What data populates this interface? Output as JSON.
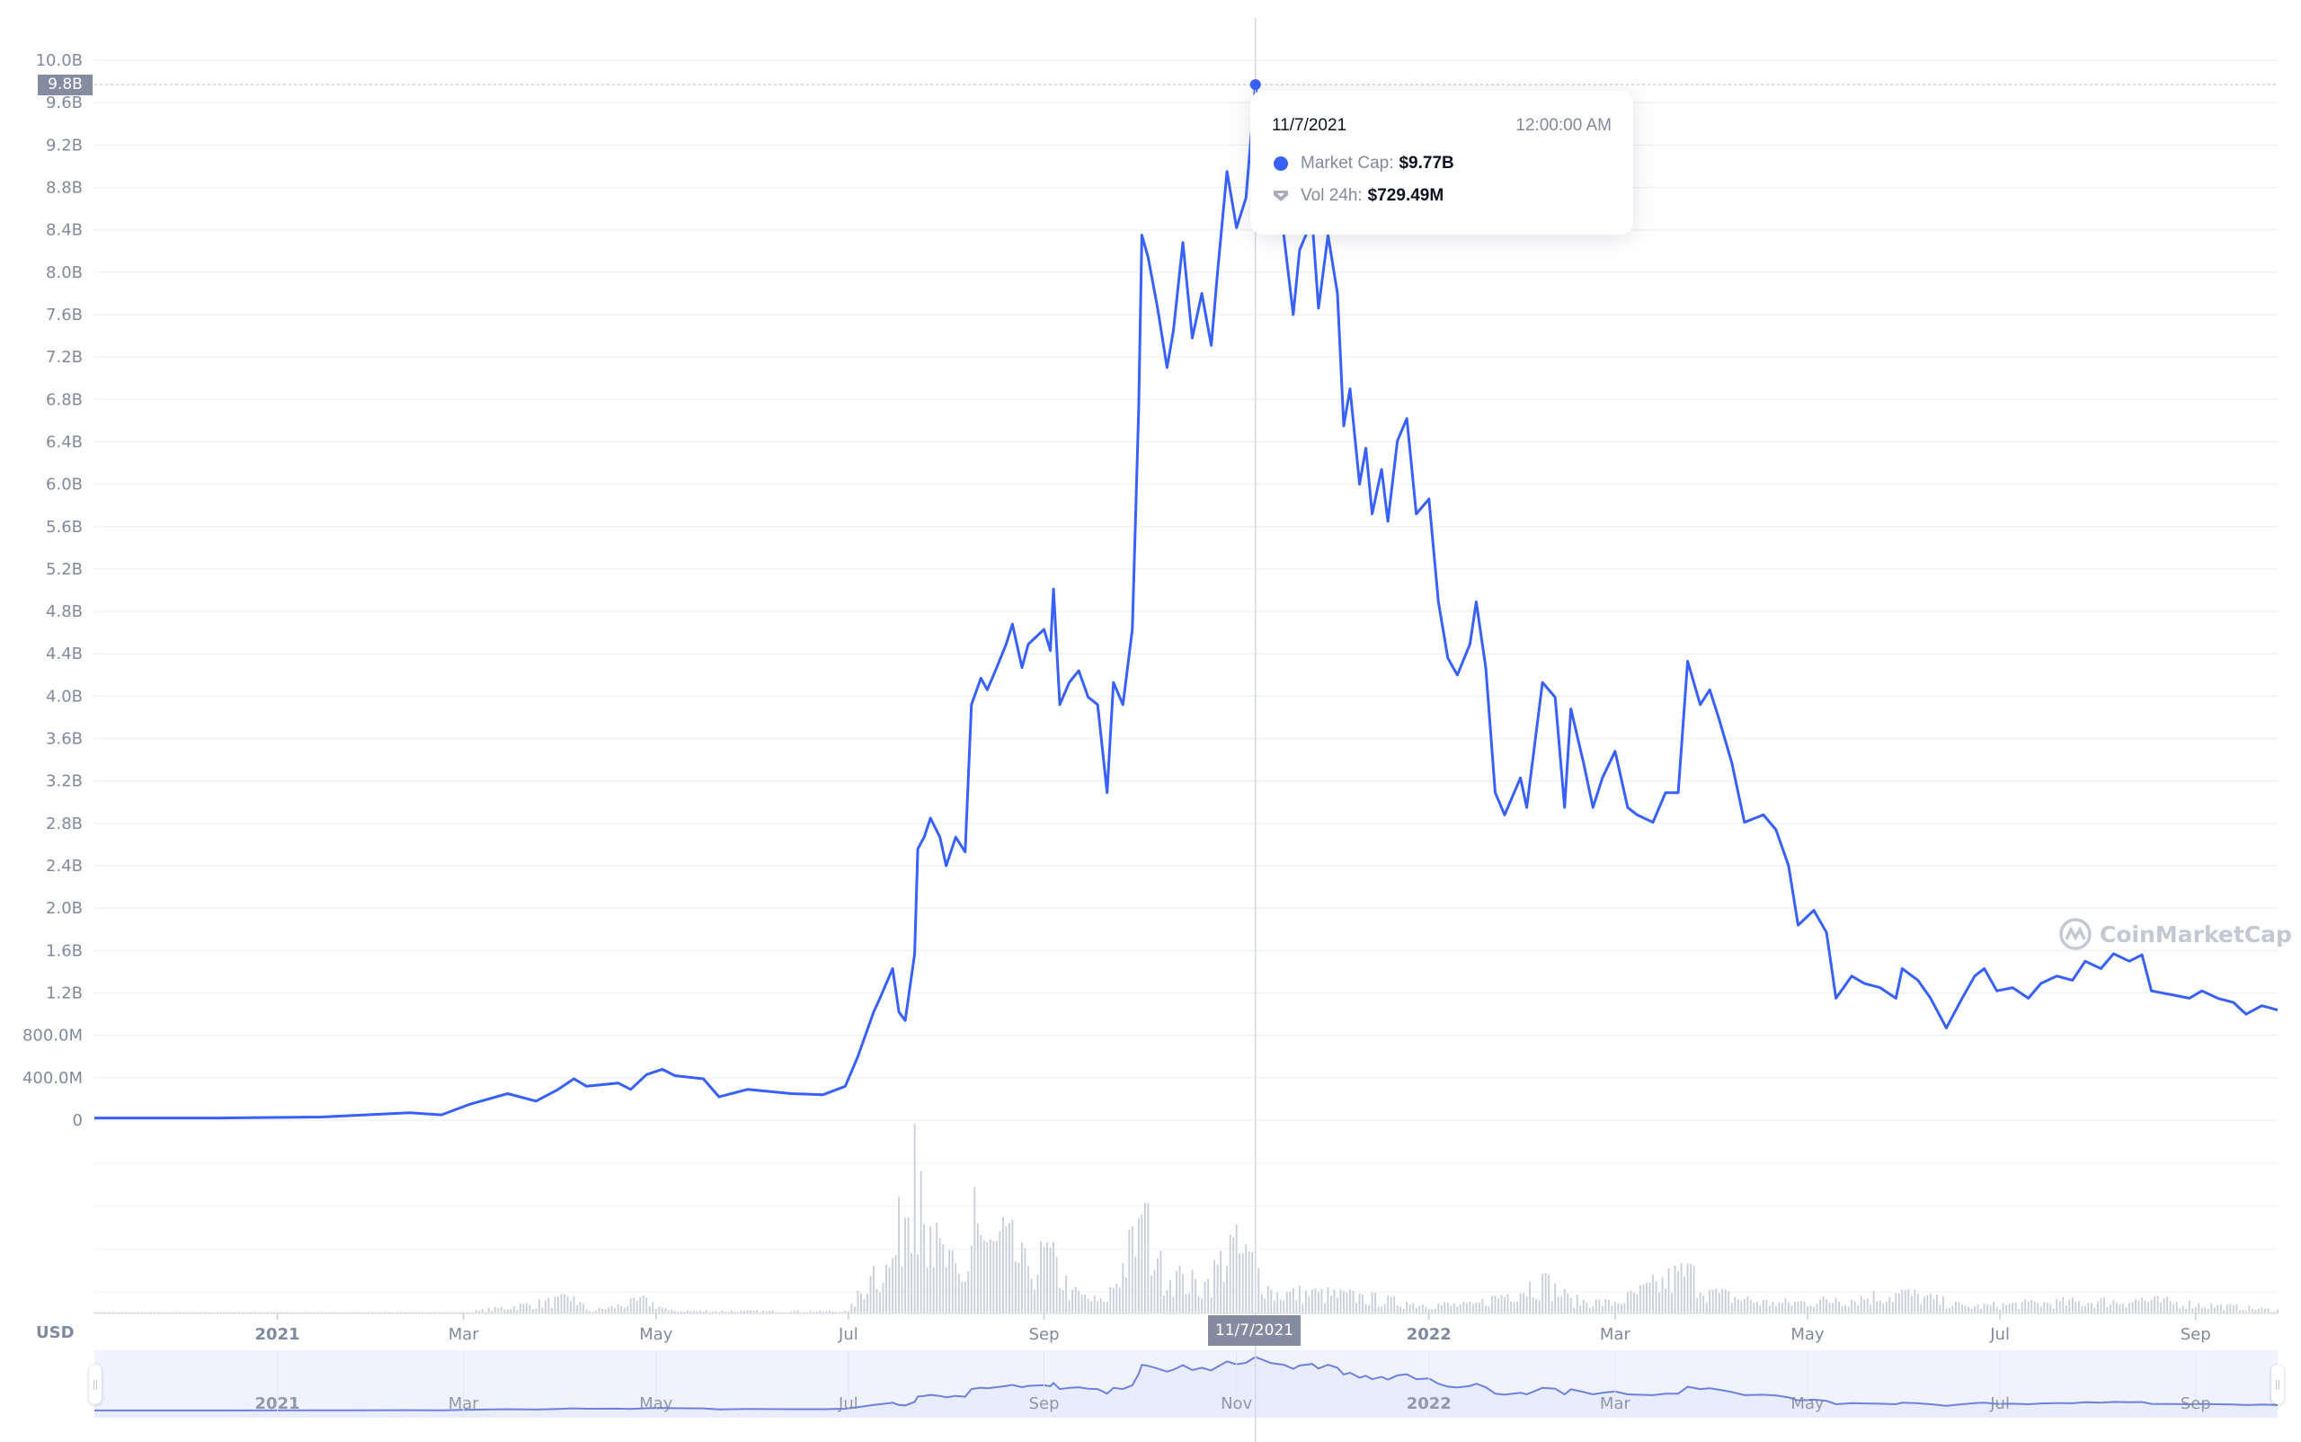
{
  "chart_data": {
    "type": "line",
    "currency_label": "USD",
    "yticks": [
      "0",
      "400.0M",
      "800.0M",
      "1.2B",
      "1.6B",
      "2.0B",
      "2.4B",
      "2.8B",
      "3.2B",
      "3.6B",
      "4.0B",
      "4.4B",
      "4.8B",
      "5.2B",
      "5.6B",
      "6.0B",
      "6.4B",
      "6.8B",
      "7.2B",
      "7.6B",
      "8.0B",
      "8.4B",
      "8.8B",
      "9.2B",
      "9.6B",
      "10.0B"
    ],
    "ylim_billions": [
      0,
      10
    ],
    "xlim": [
      "2020-11-04",
      "2022-09-27"
    ],
    "xticks": [
      {
        "date": "2021-01-01",
        "label": "2021",
        "bold": true
      },
      {
        "date": "2021-03-01",
        "label": "Mar"
      },
      {
        "date": "2021-05-01",
        "label": "May"
      },
      {
        "date": "2021-07-01",
        "label": "Jul"
      },
      {
        "date": "2021-09-01",
        "label": "Sep"
      },
      {
        "date": "2022-01-01",
        "label": "2022",
        "bold": true
      },
      {
        "date": "2022-03-01",
        "label": "Mar"
      },
      {
        "date": "2022-05-01",
        "label": "May"
      },
      {
        "date": "2022-07-01",
        "label": "Jul"
      },
      {
        "date": "2022-09-01",
        "label": "Sep"
      }
    ],
    "nav_xticks": [
      {
        "date": "2021-01-01",
        "label": "2021",
        "bold": true
      },
      {
        "date": "2021-03-01",
        "label": "Mar"
      },
      {
        "date": "2021-05-01",
        "label": "May"
      },
      {
        "date": "2021-07-01",
        "label": "Jul"
      },
      {
        "date": "2021-09-01",
        "label": "Sep"
      },
      {
        "date": "2021-11-01",
        "label": "Nov"
      },
      {
        "date": "2022-01-01",
        "label": "2022",
        "bold": true
      },
      {
        "date": "2022-03-01",
        "label": "Mar"
      },
      {
        "date": "2022-05-01",
        "label": "May"
      },
      {
        "date": "2022-07-01",
        "label": "Jul"
      },
      {
        "date": "2022-09-01",
        "label": "Sep"
      }
    ],
    "grid": true,
    "colors": {
      "line": "#3861fb",
      "volume": "#c8cdd9",
      "nav_fill": "#e8ecfd",
      "nav_line": "#6d82e0"
    },
    "market_cap_billions": [
      [
        "2020-11-04",
        0.02
      ],
      [
        "2020-12-14",
        0.02
      ],
      [
        "2021-01-15",
        0.03
      ],
      [
        "2021-02-12",
        0.07
      ],
      [
        "2021-02-22",
        0.05
      ],
      [
        "2021-03-03",
        0.15
      ],
      [
        "2021-03-15",
        0.25
      ],
      [
        "2021-03-24",
        0.18
      ],
      [
        "2021-03-31",
        0.29
      ],
      [
        "2021-04-05",
        0.39
      ],
      [
        "2021-04-09",
        0.32
      ],
      [
        "2021-04-19",
        0.35
      ],
      [
        "2021-04-23",
        0.29
      ],
      [
        "2021-04-28",
        0.43
      ],
      [
        "2021-05-03",
        0.48
      ],
      [
        "2021-05-07",
        0.42
      ],
      [
        "2021-05-16",
        0.39
      ],
      [
        "2021-05-21",
        0.22
      ],
      [
        "2021-05-30",
        0.29
      ],
      [
        "2021-06-13",
        0.25
      ],
      [
        "2021-06-23",
        0.24
      ],
      [
        "2021-06-30",
        0.32
      ],
      [
        "2021-07-04",
        0.6
      ],
      [
        "2021-07-09",
        1.02
      ],
      [
        "2021-07-11",
        1.15
      ],
      [
        "2021-07-15",
        1.43
      ],
      [
        "2021-07-17",
        1.02
      ],
      [
        "2021-07-19",
        0.94
      ],
      [
        "2021-07-22",
        1.57
      ],
      [
        "2021-07-23",
        2.56
      ],
      [
        "2021-07-25",
        2.67
      ],
      [
        "2021-07-27",
        2.85
      ],
      [
        "2021-07-30",
        2.67
      ],
      [
        "2021-08-01",
        2.4
      ],
      [
        "2021-08-04",
        2.67
      ],
      [
        "2021-08-07",
        2.53
      ],
      [
        "2021-08-09",
        3.92
      ],
      [
        "2021-08-12",
        4.17
      ],
      [
        "2021-08-14",
        4.06
      ],
      [
        "2021-08-17",
        4.27
      ],
      [
        "2021-08-20",
        4.49
      ],
      [
        "2021-08-22",
        4.68
      ],
      [
        "2021-08-25",
        4.27
      ],
      [
        "2021-08-27",
        4.49
      ],
      [
        "2021-09-01",
        4.63
      ],
      [
        "2021-09-03",
        4.43
      ],
      [
        "2021-09-04",
        5.01
      ],
      [
        "2021-09-06",
        3.92
      ],
      [
        "2021-09-09",
        4.13
      ],
      [
        "2021-09-12",
        4.24
      ],
      [
        "2021-09-15",
        3.99
      ],
      [
        "2021-09-18",
        3.92
      ],
      [
        "2021-09-21",
        3.09
      ],
      [
        "2021-09-23",
        4.13
      ],
      [
        "2021-09-26",
        3.92
      ],
      [
        "2021-09-29",
        4.63
      ],
      [
        "2021-10-01",
        6.69
      ],
      [
        "2021-10-02",
        8.35
      ],
      [
        "2021-10-04",
        8.14
      ],
      [
        "2021-10-07",
        7.66
      ],
      [
        "2021-10-10",
        7.1
      ],
      [
        "2021-10-12",
        7.45
      ],
      [
        "2021-10-15",
        8.28
      ],
      [
        "2021-10-18",
        7.38
      ],
      [
        "2021-10-21",
        7.8
      ],
      [
        "2021-10-24",
        7.31
      ],
      [
        "2021-10-26",
        8.0
      ],
      [
        "2021-10-29",
        8.95
      ],
      [
        "2021-11-01",
        8.42
      ],
      [
        "2021-11-04",
        8.7
      ],
      [
        "2021-11-07",
        9.77
      ],
      [
        "2021-11-12",
        8.64
      ],
      [
        "2021-11-16",
        8.35
      ],
      [
        "2021-11-19",
        7.6
      ],
      [
        "2021-11-21",
        8.21
      ],
      [
        "2021-11-25",
        8.49
      ],
      [
        "2021-11-27",
        7.66
      ],
      [
        "2021-11-30",
        8.35
      ],
      [
        "2021-12-03",
        7.8
      ],
      [
        "2021-12-05",
        6.55
      ],
      [
        "2021-12-07",
        6.9
      ],
      [
        "2021-12-10",
        6.0
      ],
      [
        "2021-12-12",
        6.34
      ],
      [
        "2021-12-14",
        5.72
      ],
      [
        "2021-12-17",
        6.14
      ],
      [
        "2021-12-19",
        5.65
      ],
      [
        "2021-12-22",
        6.41
      ],
      [
        "2021-12-25",
        6.62
      ],
      [
        "2021-12-28",
        5.72
      ],
      [
        "2022-01-01",
        5.86
      ],
      [
        "2022-01-04",
        4.89
      ],
      [
        "2022-01-07",
        4.36
      ],
      [
        "2022-01-10",
        4.2
      ],
      [
        "2022-01-14",
        4.49
      ],
      [
        "2022-01-16",
        4.89
      ],
      [
        "2022-01-19",
        4.27
      ],
      [
        "2022-01-22",
        3.09
      ],
      [
        "2022-01-25",
        2.88
      ],
      [
        "2022-01-30",
        3.23
      ],
      [
        "2022-02-01",
        2.95
      ],
      [
        "2022-02-06",
        4.13
      ],
      [
        "2022-02-10",
        3.99
      ],
      [
        "2022-02-13",
        2.95
      ],
      [
        "2022-02-15",
        3.88
      ],
      [
        "2022-02-19",
        3.37
      ],
      [
        "2022-02-22",
        2.95
      ],
      [
        "2022-02-25",
        3.23
      ],
      [
        "2022-03-01",
        3.48
      ],
      [
        "2022-03-05",
        2.95
      ],
      [
        "2022-03-08",
        2.88
      ],
      [
        "2022-03-13",
        2.81
      ],
      [
        "2022-03-17",
        3.09
      ],
      [
        "2022-03-21",
        3.09
      ],
      [
        "2022-03-24",
        4.33
      ],
      [
        "2022-03-28",
        3.92
      ],
      [
        "2022-03-31",
        4.06
      ],
      [
        "2022-04-03",
        3.78
      ],
      [
        "2022-04-07",
        3.37
      ],
      [
        "2022-04-11",
        2.81
      ],
      [
        "2022-04-17",
        2.88
      ],
      [
        "2022-04-21",
        2.74
      ],
      [
        "2022-04-25",
        2.4
      ],
      [
        "2022-04-28",
        1.84
      ],
      [
        "2022-05-03",
        1.98
      ],
      [
        "2022-05-07",
        1.77
      ],
      [
        "2022-05-10",
        1.15
      ],
      [
        "2022-05-15",
        1.36
      ],
      [
        "2022-05-19",
        1.29
      ],
      [
        "2022-05-24",
        1.25
      ],
      [
        "2022-05-29",
        1.15
      ],
      [
        "2022-05-31",
        1.43
      ],
      [
        "2022-06-05",
        1.32
      ],
      [
        "2022-06-09",
        1.15
      ],
      [
        "2022-06-14",
        0.87
      ],
      [
        "2022-06-19",
        1.15
      ],
      [
        "2022-06-23",
        1.36
      ],
      [
        "2022-06-26",
        1.43
      ],
      [
        "2022-06-30",
        1.22
      ],
      [
        "2022-07-05",
        1.25
      ],
      [
        "2022-07-10",
        1.15
      ],
      [
        "2022-07-14",
        1.29
      ],
      [
        "2022-07-19",
        1.36
      ],
      [
        "2022-07-24",
        1.32
      ],
      [
        "2022-07-28",
        1.5
      ],
      [
        "2022-08-02",
        1.43
      ],
      [
        "2022-08-06",
        1.57
      ],
      [
        "2022-08-11",
        1.5
      ],
      [
        "2022-08-15",
        1.56
      ],
      [
        "2022-08-18",
        1.22
      ],
      [
        "2022-08-25",
        1.18
      ],
      [
        "2022-08-30",
        1.15
      ],
      [
        "2022-09-03",
        1.22
      ],
      [
        "2022-09-08",
        1.15
      ],
      [
        "2022-09-13",
        1.11
      ],
      [
        "2022-09-17",
        1.0
      ],
      [
        "2022-09-22",
        1.08
      ],
      [
        "2022-09-27",
        1.04
      ]
    ],
    "volume_millions": [
      [
        "2020-11-04",
        8
      ],
      [
        "2021-03-01",
        10
      ],
      [
        "2021-04-05",
        220
      ],
      [
        "2021-04-10",
        30
      ],
      [
        "2021-04-28",
        200
      ],
      [
        "2021-05-05",
        40
      ],
      [
        "2021-07-01",
        30
      ],
      [
        "2021-07-09",
        600
      ],
      [
        "2021-07-15",
        700
      ],
      [
        "2021-07-22",
        2400
      ],
      [
        "2021-07-24",
        1800
      ],
      [
        "2021-07-27",
        1100
      ],
      [
        "2021-08-07",
        400
      ],
      [
        "2021-08-10",
        1600
      ],
      [
        "2021-08-14",
        900
      ],
      [
        "2021-08-20",
        1100
      ],
      [
        "2021-08-27",
        600
      ],
      [
        "2021-09-02",
        900
      ],
      [
        "2021-09-10",
        300
      ],
      [
        "2021-09-20",
        150
      ],
      [
        "2021-10-01",
        1200
      ],
      [
        "2021-10-03",
        1400
      ],
      [
        "2021-10-07",
        700
      ],
      [
        "2021-10-15",
        500
      ],
      [
        "2021-10-22",
        400
      ],
      [
        "2021-10-30",
        1000
      ],
      [
        "2021-11-07",
        729.49
      ],
      [
        "2021-11-12",
        300
      ],
      [
        "2021-11-25",
        300
      ],
      [
        "2021-12-10",
        250
      ],
      [
        "2021-12-25",
        150
      ],
      [
        "2022-01-15",
        120
      ],
      [
        "2022-02-06",
        500
      ],
      [
        "2022-02-15",
        200
      ],
      [
        "2022-03-01",
        150
      ],
      [
        "2022-03-24",
        630
      ],
      [
        "2022-04-01",
        300
      ],
      [
        "2022-04-20",
        150
      ],
      [
        "2022-05-10",
        200
      ],
      [
        "2022-06-01",
        300
      ],
      [
        "2022-06-20",
        100
      ],
      [
        "2022-07-10",
        150
      ],
      [
        "2022-08-15",
        200
      ],
      [
        "2022-09-27",
        50
      ]
    ]
  },
  "crosshair": {
    "date": "2021-11-07",
    "value_label": "9.8B",
    "date_label": "11/7/2021"
  },
  "tooltip": {
    "date": "11/7/2021",
    "time": "12:00:00 AM",
    "market_cap_label": "Market Cap:",
    "market_cap_value": "$9.77B",
    "volume_label": "Vol 24h:",
    "volume_value": "$729.49M"
  },
  "watermark": "CoinMarketCap"
}
